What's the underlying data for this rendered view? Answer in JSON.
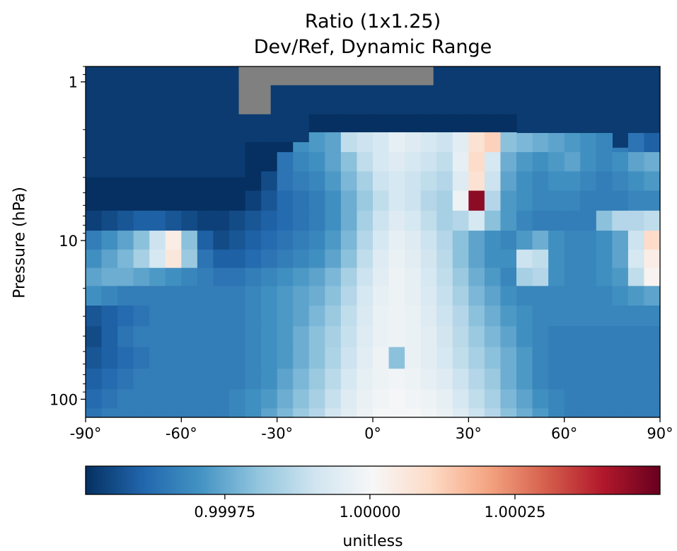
{
  "chart_data": {
    "type": "heatmap",
    "title": "Ratio (1x1.25)",
    "subtitle": "Dev/Ref, Dynamic Range",
    "xlabel": "",
    "ylabel": "Pressure (hPa)",
    "x_range": [
      -90,
      90
    ],
    "y_range": [
      130,
      0.8
    ],
    "y_scale": "log",
    "x_ticks": [
      {
        "value": -90,
        "label": "-90°"
      },
      {
        "value": -60,
        "label": "-60°"
      },
      {
        "value": -30,
        "label": "-30°"
      },
      {
        "value": 0,
        "label": "0°"
      },
      {
        "value": 30,
        "label": "30°"
      },
      {
        "value": 60,
        "label": "60°"
      },
      {
        "value": 90,
        "label": "90°"
      }
    ],
    "y_ticks": [
      {
        "value": 1,
        "label": "1"
      },
      {
        "value": 10,
        "label": "10"
      },
      {
        "value": 100,
        "label": "100"
      }
    ],
    "colormap": "RdBu_r",
    "colorbar": {
      "label": "unitless",
      "min": 0.99951,
      "max": 1.0005,
      "ticks": [
        {
          "value": 0.99975,
          "label": "0.99975"
        },
        {
          "value": 1.0,
          "label": "1.00000"
        },
        {
          "value": 1.00025,
          "label": "1.00025"
        }
      ]
    },
    "missing_color": "#808080",
    "missing_regions": [
      {
        "lat": [
          -42,
          19
        ],
        "pressure": [
          0.8,
          1.05
        ]
      },
      {
        "lat": [
          -42,
          -32
        ],
        "pressure": [
          0.8,
          1.6
        ]
      }
    ],
    "data_top_by_lat": [
      {
        "lat": [
          -90,
          -42
        ],
        "top_pressure": 4.0
      },
      {
        "lat": [
          -42,
          -20
        ],
        "top_pressure": 2.4
      },
      {
        "lat": [
          -20,
          43
        ],
        "top_pressure": 1.6
      },
      {
        "lat": [
          43,
          73
        ],
        "top_pressure": 2.1
      },
      {
        "lat": [
          73,
          80
        ],
        "top_pressure": 2.6
      },
      {
        "lat": [
          80,
          90
        ],
        "top_pressure": 2.1
      }
    ],
    "rows": [
      {
        "p": 1.8,
        "v": [
          -0.00049,
          -0.00049,
          -0.00049,
          -0.00049,
          -0.00049,
          -0.00049,
          -0.00049,
          -0.00049,
          -0.00049,
          -0.00049,
          -0.00049,
          -0.00049,
          -0.00049,
          -0.00049,
          -0.00049,
          -0.00049,
          -0.00049,
          -0.00049,
          -0.00049,
          -0.00049,
          -0.00049,
          -0.00049,
          -0.00049,
          -0.00049,
          -0.00049,
          -0.00049,
          -0.00049,
          -0.00049,
          -0.00049,
          -0.00049,
          -0.00049,
          -0.00049,
          -0.00049,
          -0.00049,
          -0.00049,
          -0.00049
        ]
      },
      {
        "p": 2.4,
        "v": [
          -0.00049,
          -0.00049,
          -0.00049,
          -0.00049,
          -0.00049,
          -0.00049,
          -0.00049,
          -0.00049,
          -0.00049,
          -0.00049,
          -0.00049,
          -0.00049,
          -0.00049,
          -0.0003,
          -0.00028,
          -0.00026,
          -0.00012,
          -0.0001,
          -8e-05,
          -4e-05,
          -6e-05,
          -8e-05,
          -0.0001,
          -5e-05,
          8e-05,
          0.00012,
          -0.0002,
          -0.00022,
          -0.00024,
          -0.00026,
          -0.00028,
          -0.0003,
          -0.00032,
          -0.00034,
          -0.00036,
          -0.0004
        ]
      },
      {
        "p": 3.2,
        "v": [
          -0.00049,
          -0.00049,
          -0.00049,
          -0.00049,
          -0.00049,
          -0.00049,
          -0.00049,
          -0.00049,
          -0.00049,
          -0.00049,
          -0.00049,
          -0.00049,
          -0.00036,
          -0.00032,
          -0.0003,
          -0.00026,
          -0.0002,
          -0.00012,
          -8e-05,
          -6e-05,
          -8e-05,
          -0.0001,
          -0.00012,
          -4e-05,
          0.0001,
          -8e-05,
          -0.00024,
          -0.00028,
          -0.0003,
          -0.00028,
          -0.00026,
          -0.0003,
          -0.00032,
          -0.0003,
          -0.00026,
          -0.00024
        ]
      },
      {
        "p": 4.2,
        "v": [
          -0.00049,
          -0.00049,
          -0.00049,
          -0.00049,
          -0.00049,
          -0.00049,
          -0.00049,
          -0.00049,
          -0.00049,
          -0.00049,
          -0.00049,
          -0.00044,
          -0.00036,
          -0.00034,
          -0.00032,
          -0.00028,
          -0.00022,
          -0.00016,
          -0.0001,
          -8e-05,
          -0.0001,
          -0.00012,
          -0.00014,
          -6e-05,
          8e-05,
          -0.0001,
          -0.00026,
          -0.0003,
          -0.00032,
          -0.0003,
          -0.0003,
          -0.00032,
          -0.00034,
          -0.00032,
          -0.0003,
          -0.00028
        ]
      },
      {
        "p": 5.6,
        "v": [
          -0.00049,
          -0.00049,
          -0.00049,
          -0.00049,
          -0.00049,
          -0.00049,
          -0.00049,
          -0.00049,
          -0.00049,
          -0.00049,
          -0.00046,
          -0.00042,
          -0.00038,
          -0.00036,
          -0.00034,
          -0.0003,
          -0.00024,
          -0.00018,
          -0.00012,
          -8e-05,
          -0.0001,
          -0.00014,
          -0.00016,
          -2e-05,
          0.00045,
          -0.00014,
          -0.00028,
          -0.0003,
          -0.00032,
          -0.00032,
          -0.00032,
          -0.00034,
          -0.00034,
          -0.00034,
          -0.00032,
          -0.00032
        ]
      },
      {
        "p": 7.5,
        "v": [
          -0.00046,
          -0.00044,
          -0.00042,
          -0.0004,
          -0.0004,
          -0.00042,
          -0.00044,
          -0.00046,
          -0.00046,
          -0.00044,
          -0.00042,
          -0.0004,
          -0.00038,
          -0.00036,
          -0.00034,
          -0.0003,
          -0.00024,
          -0.00016,
          -0.0001,
          -6e-05,
          -8e-05,
          -0.00012,
          -0.00016,
          -0.00014,
          -8e-05,
          -0.0002,
          -0.00028,
          -0.00032,
          -0.00034,
          -0.00034,
          -0.00034,
          -0.00034,
          -0.0002,
          -0.00014,
          -0.00014,
          -0.00012
        ]
      },
      {
        "p": 10,
        "v": [
          -0.00034,
          -0.0003,
          -0.00026,
          -0.0002,
          -0.0001,
          4e-05,
          -0.0002,
          -0.0004,
          -0.00044,
          -0.00042,
          -0.0004,
          -0.00038,
          -0.00036,
          -0.00034,
          -0.00032,
          -0.00028,
          -0.00022,
          -0.00014,
          -8e-05,
          -4e-05,
          -6e-05,
          -0.0001,
          -0.00014,
          -0.0002,
          -0.00026,
          -0.0003,
          -0.00032,
          -0.00028,
          -0.00024,
          -0.0003,
          -0.00032,
          -0.00032,
          -0.0003,
          -0.00026,
          -0.0001,
          0.0001
        ]
      },
      {
        "p": 13,
        "v": [
          -0.0003,
          -0.00026,
          -0.00022,
          -0.00016,
          -8e-05,
          6e-05,
          -0.00018,
          -0.00036,
          -0.0004,
          -0.0004,
          -0.00038,
          -0.00036,
          -0.00034,
          -0.00032,
          -0.0003,
          -0.00026,
          -0.0002,
          -0.00012,
          -6e-05,
          -3e-05,
          -5e-05,
          -9e-05,
          -0.00013,
          -0.0002,
          -0.00026,
          -0.0003,
          -0.0003,
          -0.0001,
          -0.00012,
          -0.0003,
          -0.00032,
          -0.00032,
          -0.0003,
          -0.00026,
          -8e-05,
          4e-05
        ]
      },
      {
        "p": 17,
        "v": [
          -0.00026,
          -0.00024,
          -0.00024,
          -0.00026,
          -0.00028,
          -0.0003,
          -0.00032,
          -0.00034,
          -0.00036,
          -0.00036,
          -0.00034,
          -0.00032,
          -0.0003,
          -0.00028,
          -0.00026,
          -0.00022,
          -0.00016,
          -0.0001,
          -5e-05,
          -2e-05,
          -4e-05,
          -8e-05,
          -0.00012,
          -0.00018,
          -0.00024,
          -0.00028,
          -0.00032,
          -0.00016,
          -0.00014,
          -0.0003,
          -0.00032,
          -0.00032,
          -0.0003,
          -0.00028,
          -0.00012,
          2e-05
        ]
      },
      {
        "p": 22,
        "v": [
          -0.0003,
          -0.00032,
          -0.00034,
          -0.00034,
          -0.00034,
          -0.00034,
          -0.00034,
          -0.00034,
          -0.00034,
          -0.00034,
          -0.00032,
          -0.0003,
          -0.00028,
          -0.00026,
          -0.00024,
          -0.0002,
          -0.00014,
          -8e-05,
          -4e-05,
          -2e-05,
          -4e-05,
          -7e-05,
          -0.00011,
          -0.00016,
          -0.00022,
          -0.00026,
          -0.0003,
          -0.00032,
          -0.00032,
          -0.00032,
          -0.00032,
          -0.00032,
          -0.00032,
          -0.0003,
          -0.00028,
          -0.00026
        ]
      },
      {
        "p": 30,
        "v": [
          -0.00042,
          -0.0004,
          -0.00038,
          -0.00036,
          -0.00034,
          -0.00034,
          -0.00034,
          -0.00034,
          -0.00034,
          -0.00034,
          -0.00032,
          -0.0003,
          -0.00028,
          -0.00026,
          -0.00022,
          -0.00018,
          -0.00012,
          -7e-05,
          -3e-05,
          -2e-05,
          -3e-05,
          -6e-05,
          -0.0001,
          -0.00014,
          -0.0002,
          -0.00024,
          -0.00028,
          -0.0003,
          -0.00032,
          -0.00032,
          -0.00032,
          -0.00032,
          -0.00032,
          -0.00032,
          -0.00032,
          -0.00032
        ]
      },
      {
        "p": 40,
        "v": [
          -0.00044,
          -0.0004,
          -0.00036,
          -0.00034,
          -0.00034,
          -0.00034,
          -0.00034,
          -0.00034,
          -0.00034,
          -0.00034,
          -0.00032,
          -0.0003,
          -0.00028,
          -0.00024,
          -0.0002,
          -0.00016,
          -0.00011,
          -6e-05,
          -3e-05,
          -2e-05,
          -3e-05,
          -5e-05,
          -9e-05,
          -0.00013,
          -0.00018,
          -0.00022,
          -0.00026,
          -0.0003,
          -0.00032,
          -0.00034,
          -0.00034,
          -0.00034,
          -0.00034,
          -0.00034,
          -0.00034,
          -0.00034
        ]
      },
      {
        "p": 55,
        "v": [
          -0.00042,
          -0.0004,
          -0.00038,
          -0.00036,
          -0.00034,
          -0.00034,
          -0.00034,
          -0.00034,
          -0.00034,
          -0.00034,
          -0.00032,
          -0.0003,
          -0.00028,
          -0.00024,
          -0.0002,
          -0.00015,
          -0.0001,
          -5e-05,
          -2e-05,
          -0.0002,
          -3e-05,
          -5e-05,
          -8e-05,
          -0.00012,
          -0.00016,
          -0.0002,
          -0.00024,
          -0.00028,
          -0.00032,
          -0.00034,
          -0.00034,
          -0.00034,
          -0.00034,
          -0.00034,
          -0.00034,
          -0.00034
        ]
      },
      {
        "p": 75,
        "v": [
          -0.0004,
          -0.00038,
          -0.00036,
          -0.00034,
          -0.00034,
          -0.00034,
          -0.00034,
          -0.00034,
          -0.00034,
          -0.00034,
          -0.00032,
          -0.0003,
          -0.00026,
          -0.00022,
          -0.00018,
          -0.00013,
          -8e-05,
          -4e-05,
          -2e-05,
          -1e-05,
          -2e-05,
          -4e-05,
          -6e-05,
          -0.0001,
          -0.00014,
          -0.00018,
          -0.00024,
          -0.00028,
          -0.00032,
          -0.00034,
          -0.00034,
          -0.00034,
          -0.00034,
          -0.00034,
          -0.00034,
          -0.00034
        ]
      },
      {
        "p": 100,
        "v": [
          -0.00038,
          -0.00036,
          -0.00034,
          -0.00034,
          -0.00034,
          -0.00034,
          -0.00034,
          -0.00034,
          -0.00034,
          -0.00032,
          -0.0003,
          -0.00028,
          -0.00024,
          -0.0002,
          -0.00016,
          -0.00011,
          -6e-05,
          -3e-05,
          -1e-05,
          0.0,
          -1e-05,
          -2e-05,
          -4e-05,
          -8e-05,
          -0.00012,
          -0.00016,
          -0.00022,
          -0.00026,
          -0.0003,
          -0.00032,
          -0.00034,
          -0.00034,
          -0.00034,
          -0.00034,
          -0.00034,
          -0.00034
        ]
      },
      {
        "p": 130,
        "v": [
          -0.00036,
          -0.00034,
          -0.00034,
          -0.00034,
          -0.00034,
          -0.00034,
          -0.00034,
          -0.00034,
          -0.00034,
          -0.00032,
          -0.0003,
          -0.00026,
          -0.00022,
          -0.00018,
          -0.00014,
          -9e-05,
          -5e-05,
          -2e-05,
          0.0,
          0.0,
          0.0,
          -1e-05,
          -3e-05,
          -6e-05,
          -0.0001,
          -0.00014,
          -0.0002,
          -0.00024,
          -0.00028,
          -0.00032,
          -0.00034,
          -0.00034,
          -0.00034,
          -0.00034,
          -0.00034,
          -0.00034
        ]
      }
    ],
    "values_note_offset": 1.0,
    "grid": false
  }
}
